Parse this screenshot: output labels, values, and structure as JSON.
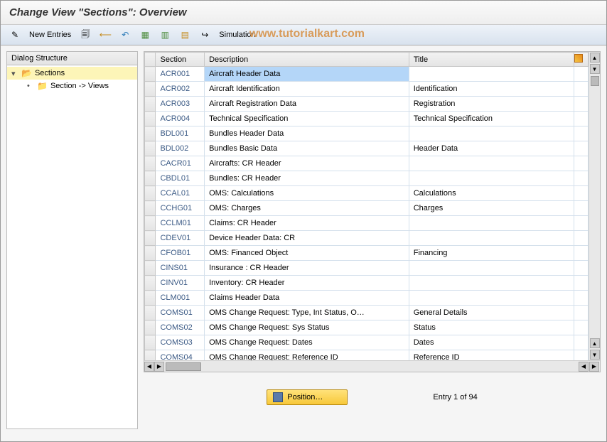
{
  "title": "Change View \"Sections\": Overview",
  "watermark": "www.tutorialkart.com",
  "toolbar": {
    "new_entries": "New Entries",
    "simulation": "Simulation"
  },
  "tree": {
    "header": "Dialog Structure",
    "items": [
      {
        "label": "Sections",
        "selected": true,
        "open": true,
        "level": 0
      },
      {
        "label": "Section -> Views",
        "selected": false,
        "open": false,
        "level": 1
      }
    ]
  },
  "table": {
    "columns": {
      "section": "Section",
      "description": "Description",
      "title": "Title"
    },
    "col_widths": {
      "rowmark": 14,
      "section": 62,
      "description": 260,
      "title": 210,
      "cfg": 18
    },
    "rows": [
      {
        "section": "ACR001",
        "description": "Aircraft Header Data",
        "title": "",
        "desc_selected": true
      },
      {
        "section": "ACR002",
        "description": "Aircraft Identification",
        "title": "Identification"
      },
      {
        "section": "ACR003",
        "description": "Aircraft Registration Data",
        "title": "Registration"
      },
      {
        "section": "ACR004",
        "description": "Technical Specification",
        "title": "Technical Specification"
      },
      {
        "section": "BDL001",
        "description": "Bundles Header Data",
        "title": ""
      },
      {
        "section": "BDL002",
        "description": "Bundles Basic Data",
        "title": "Header Data"
      },
      {
        "section": "CACR01",
        "description": "Aircrafts: CR Header",
        "title": ""
      },
      {
        "section": "CBDL01",
        "description": "Bundles: CR Header",
        "title": ""
      },
      {
        "section": "CCAL01",
        "description": "OMS: Calculations",
        "title": "Calculations"
      },
      {
        "section": "CCHG01",
        "description": "OMS: Charges",
        "title": "Charges"
      },
      {
        "section": "CCLM01",
        "description": "Claims: CR Header",
        "title": ""
      },
      {
        "section": "CDEV01",
        "description": "Device Header Data: CR",
        "title": ""
      },
      {
        "section": "CFOB01",
        "description": "OMS: Financed Object",
        "title": "Financing"
      },
      {
        "section": "CINS01",
        "description": "Insurance : CR Header",
        "title": ""
      },
      {
        "section": "CINV01",
        "description": "Inventory: CR Header",
        "title": ""
      },
      {
        "section": "CLM001",
        "description": "Claims Header Data",
        "title": ""
      },
      {
        "section": "COMS01",
        "description": "OMS Change Request: Type, Int Status, O…",
        "title": "General Details"
      },
      {
        "section": "COMS02",
        "description": "OMS Change Request: Sys Status",
        "title": "Status"
      },
      {
        "section": "COMS03",
        "description": "OMS Change Request: Dates",
        "title": "Dates"
      },
      {
        "section": "COMS04",
        "description": "OMS Change Request: Reference ID",
        "title": "Reference ID"
      }
    ],
    "header_bg": "#ececec",
    "border_color": "#c8c8c8",
    "cell_border": "#d4e0ec",
    "section_color": "#3b5a85",
    "selected_bg": "#b4d6f8"
  },
  "footer": {
    "position_label": "Position…",
    "entry_text": "Entry 1 of 94"
  },
  "colors": {
    "tree_selected_bg": "#fdf5b8",
    "toolbar_bg_top": "#eef3f9",
    "toolbar_bg_bot": "#d8e2ee",
    "position_btn_top": "#ffe27a",
    "position_btn_bot": "#f7c83a"
  }
}
